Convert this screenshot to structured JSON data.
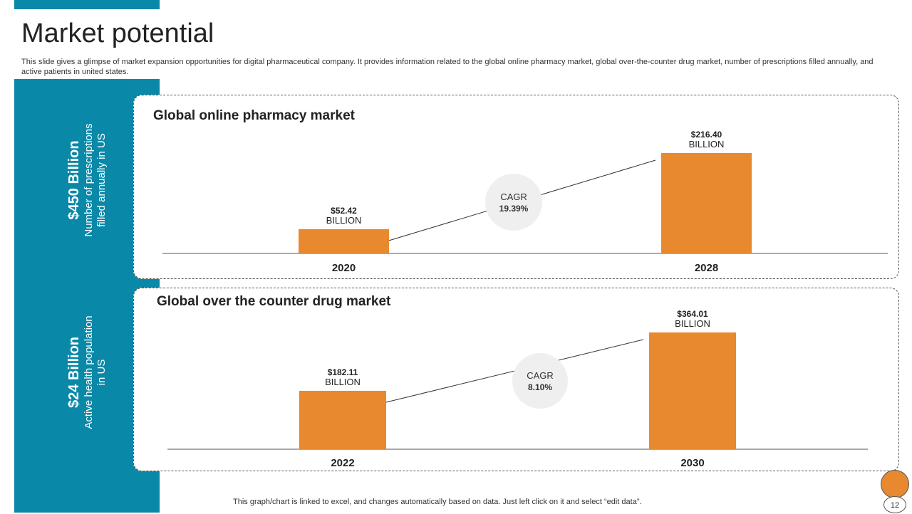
{
  "title": "Market potential",
  "subtitle": "This slide gives a glimpse of market expansion opportunities for digital pharmaceutical company. It provides information related to the global online pharmacy market, global over-the-counter drug market, number of prescriptions filled annually, and active patients in united states.",
  "sidebar": {
    "stats": [
      {
        "value": "$450 Billion",
        "label_line1": "Number of prescriptions",
        "label_line2": "filled annually in US"
      },
      {
        "value": "$24 Billion",
        "label_line1": "Active health population",
        "label_line2": "in US"
      }
    ]
  },
  "chart_data": [
    {
      "type": "bar",
      "title": "Global online pharmacy market",
      "categories": [
        "2020",
        "2028"
      ],
      "values": [
        52.42,
        216.4
      ],
      "value_labels": [
        "$52.42",
        "$216.40"
      ],
      "unit_label": "BILLION",
      "cagr_label": "CAGR",
      "cagr_value": "19.39%",
      "xlabel": "",
      "ylabel": "",
      "ylim": [
        0,
        216.4
      ],
      "color": "#e8892f"
    },
    {
      "type": "bar",
      "title": "Global over the counter drug market",
      "categories": [
        "2022",
        "2030"
      ],
      "values": [
        182.11,
        364.01
      ],
      "value_labels": [
        "$182.11",
        "$364.01"
      ],
      "unit_label": "BILLION",
      "cagr_label": "CAGR",
      "cagr_value": "8.10%",
      "xlabel": "",
      "ylabel": "",
      "ylim": [
        0,
        364.01
      ],
      "color": "#e8892f"
    }
  ],
  "footer_note": "This graph/chart is linked to excel, and changes automatically based on data. Just left click on it and select “edit data”.",
  "page_number": "12",
  "colors": {
    "accent": "#0a88a8",
    "bar": "#e8892f",
    "cagr_circle": "#efefef"
  }
}
